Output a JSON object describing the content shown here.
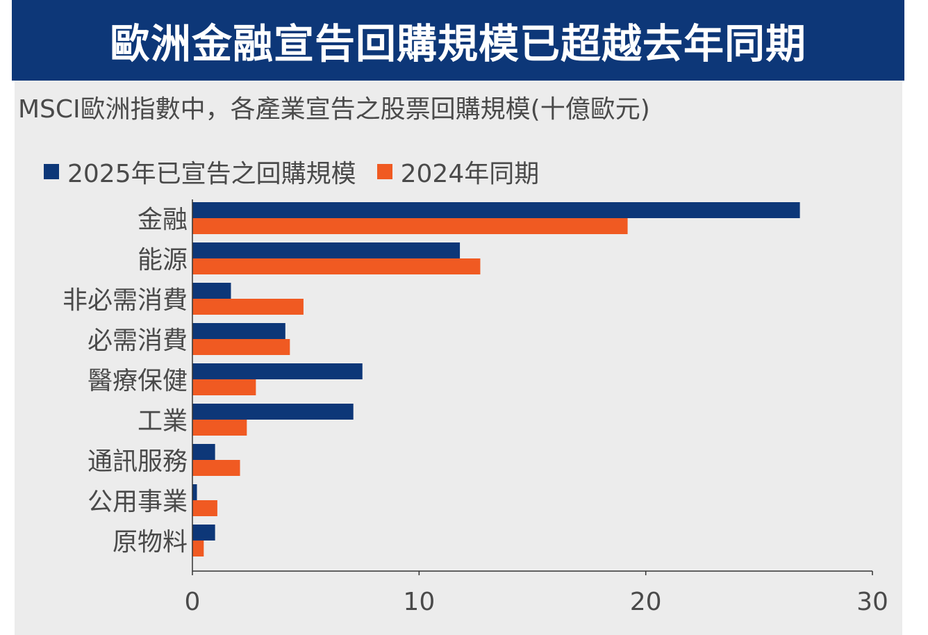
{
  "title": "歐洲金融宣告回購規模已超越去年同期",
  "chart_data": {
    "type": "bar",
    "orientation": "horizontal",
    "subtitle": "MSCI歐洲指數中，各產業宣告之股票回購規模(十億歐元)",
    "categories": [
      "金融",
      "能源",
      "非必需消費",
      "必需消費",
      "醫療保健",
      "工業",
      "通訊服務",
      "公用事業",
      "原物料"
    ],
    "series": [
      {
        "name": "2025年已宣告之回購規模",
        "color": "#0d3778",
        "values": [
          26.8,
          11.8,
          1.7,
          4.1,
          7.5,
          7.1,
          1.0,
          0.2,
          1.0
        ]
      },
      {
        "name": "2024年同期",
        "color": "#f05a22",
        "values": [
          19.2,
          12.7,
          4.9,
          4.3,
          2.8,
          2.4,
          2.1,
          1.1,
          0.5
        ]
      }
    ],
    "xlim": [
      0,
      30
    ],
    "xticks": [
      0,
      10,
      20,
      30
    ],
    "legend": "top-left",
    "grid": false
  }
}
